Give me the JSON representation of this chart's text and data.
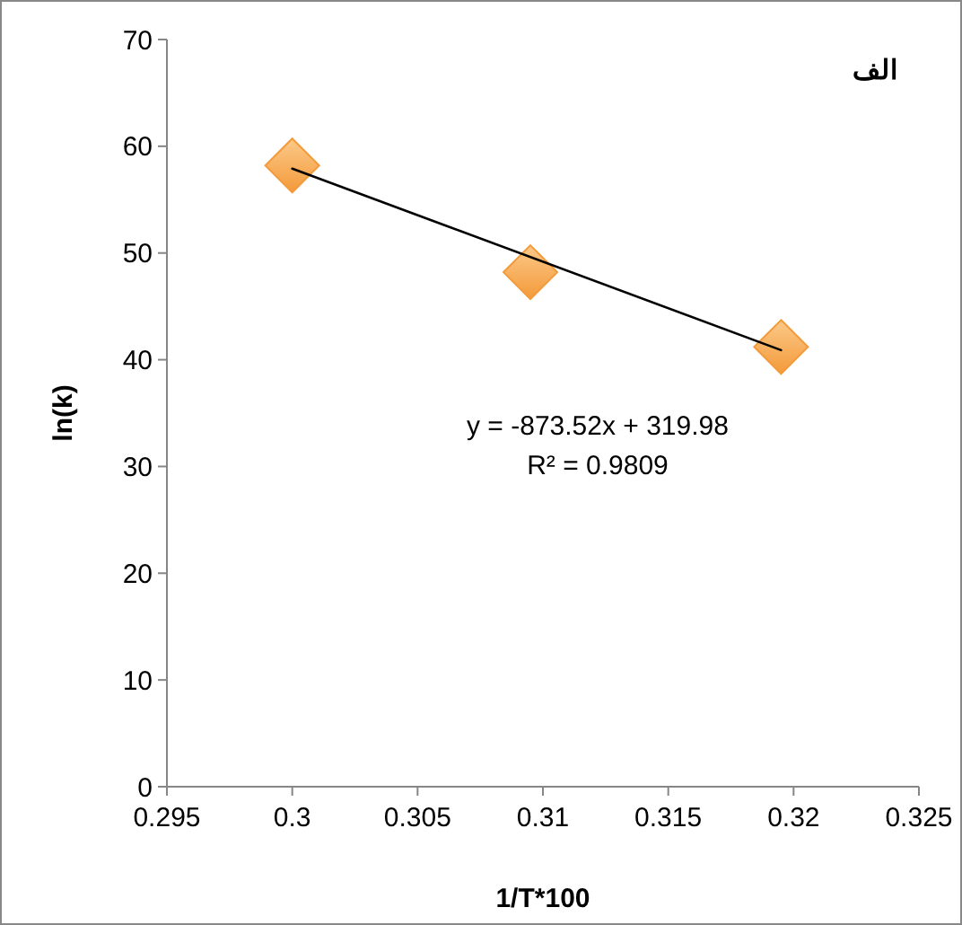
{
  "chart_data": {
    "type": "scatter",
    "title": "الف",
    "xlabel": "1/T*100",
    "ylabel": "ln(k)",
    "annotations": [
      "y = -873.52x + 319.98",
      "R² = 0.9809"
    ],
    "series": [
      {
        "color": "#f39a3a",
        "marker": "diamond",
        "x": [
          0.3,
          0.3095,
          0.3195
        ],
        "values": [
          58.2,
          48.2,
          41.2
        ]
      },
      {
        "type": "line",
        "color": "#000000",
        "marker": "none",
        "line_style": "solid",
        "x": [
          0.3,
          0.3195
        ],
        "values": [
          57.9,
          40.9
        ]
      }
    ],
    "xlim": [
      0.295,
      0.325
    ],
    "xticks": [
      0.295,
      0.3,
      0.305,
      0.31,
      0.315,
      0.32,
      0.325
    ],
    "ylim": [
      0,
      70
    ],
    "yticks": [
      0,
      10,
      20,
      30,
      40,
      50,
      60,
      70
    ],
    "grid": false
  }
}
